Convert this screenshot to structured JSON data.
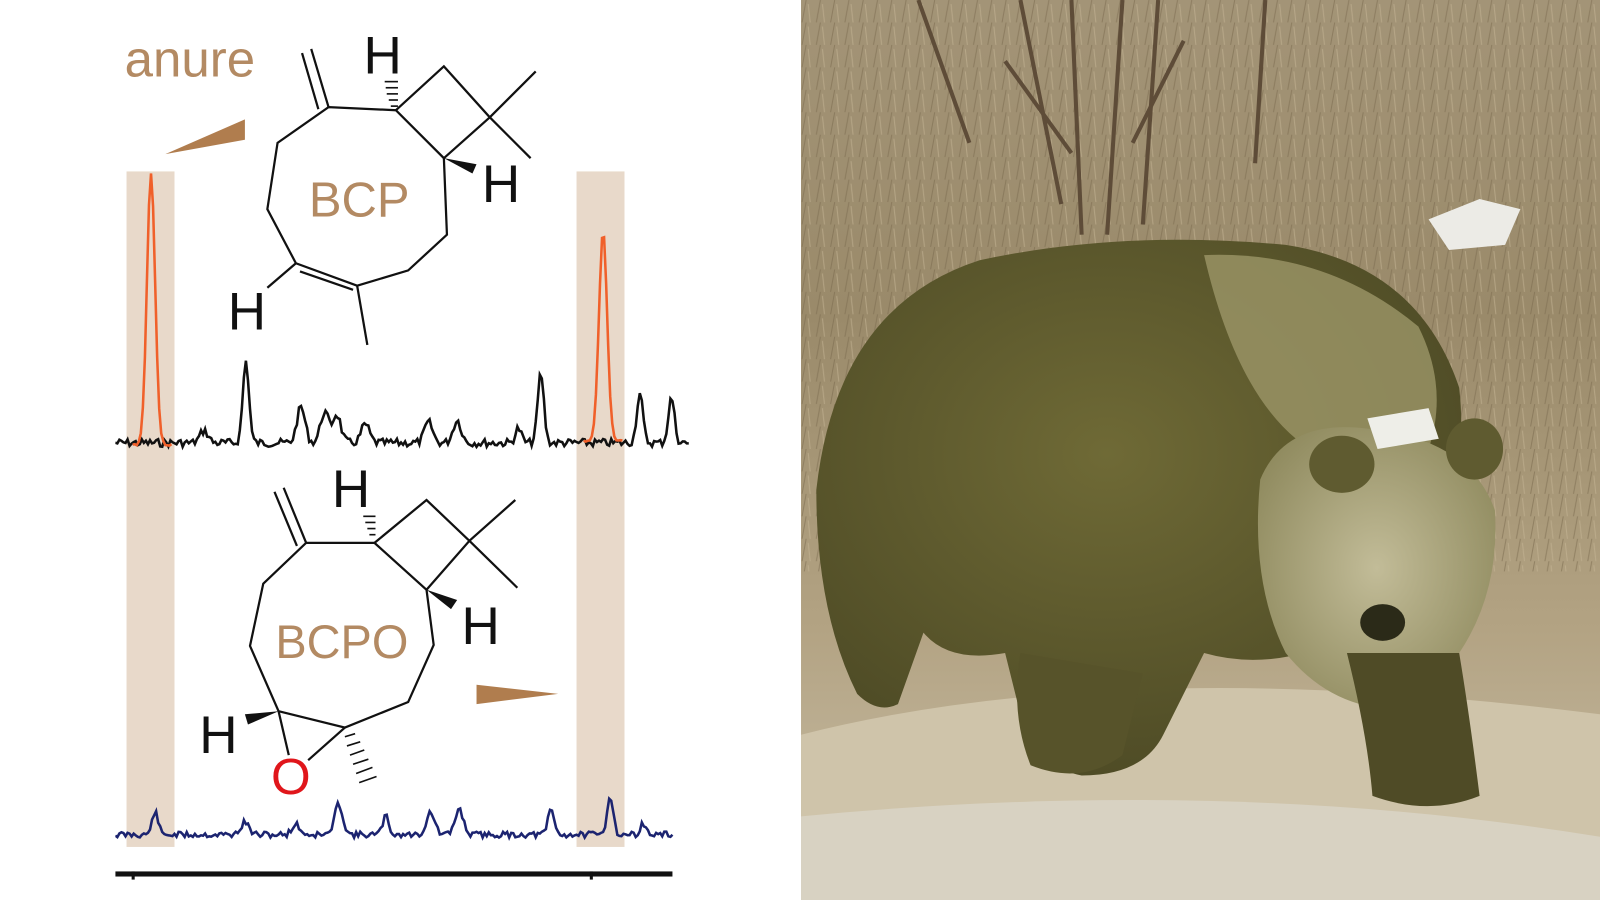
{
  "figure": {
    "partial_title": "anure",
    "molecule_top": {
      "label": "BCP",
      "h_top": "H",
      "h_right": "H",
      "h_left": "H"
    },
    "molecule_bottom": {
      "label": "BCPO",
      "h_top": "H",
      "h_right": "H",
      "h_left": "H",
      "oxygen": "O"
    },
    "colors": {
      "label_brown": "#b38a63",
      "arrow_brown": "#b07d4e",
      "band_beige": "#e8d9ca",
      "top_spectrum": "#111111",
      "highlight_peak": "#f0602a",
      "bottom_spectrum": "#1c2470",
      "oxygen_red": "#e0161b"
    }
  },
  "photo": {
    "subject": "panda-covered-in-manure",
    "colors": {
      "ground": "#b9a98a",
      "grass": "#8e7a5c",
      "fur_dark": "#5d5a2c",
      "fur_light": "#a9a37a"
    }
  }
}
